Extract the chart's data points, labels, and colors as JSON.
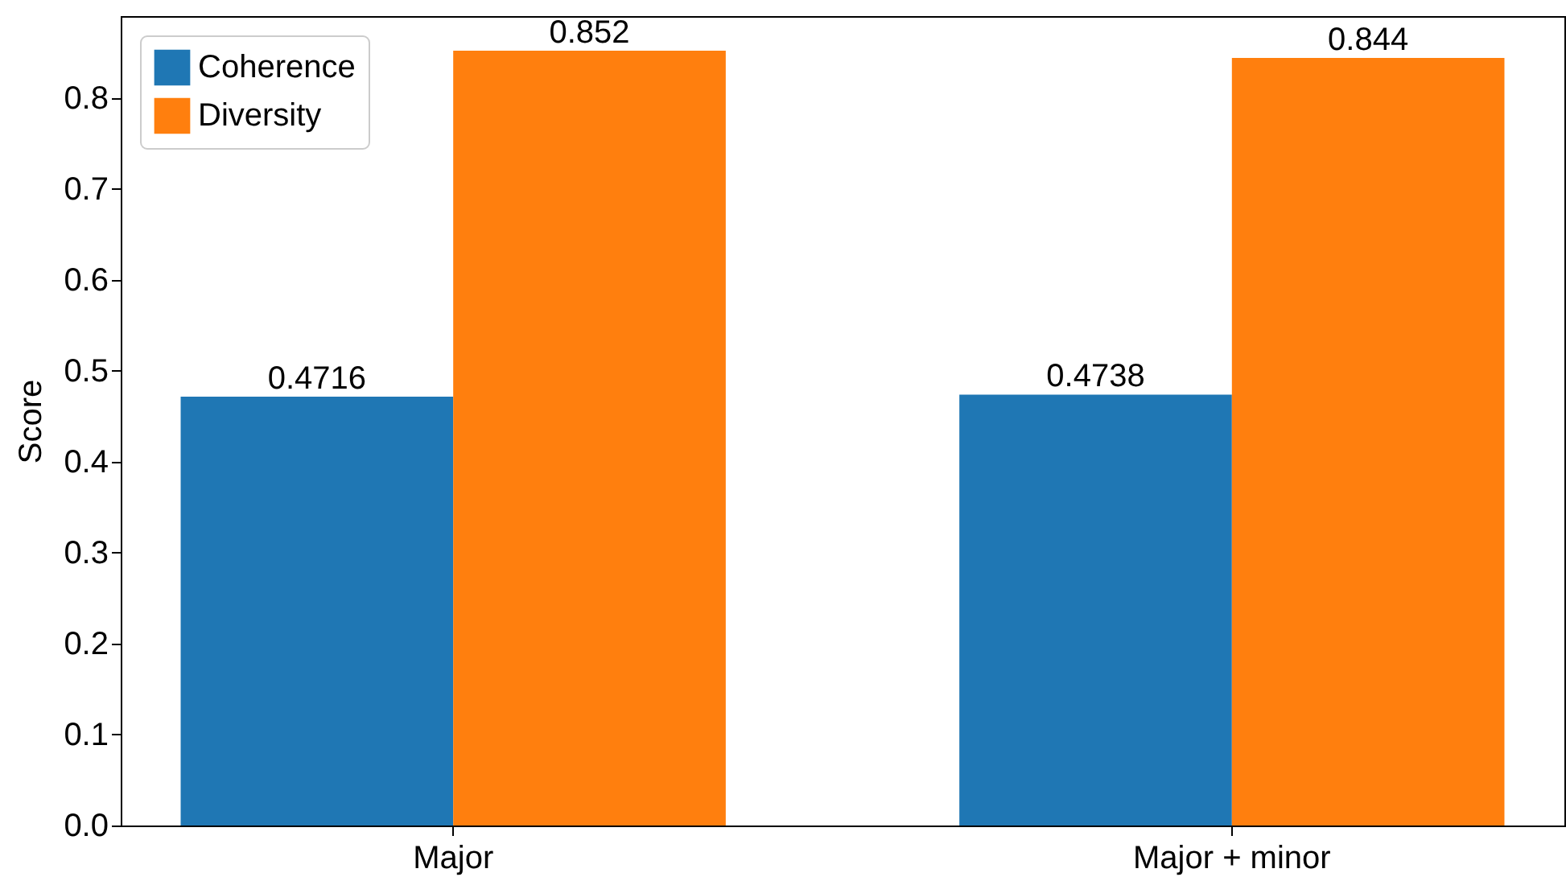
{
  "chart_data": {
    "type": "bar",
    "categories": [
      "Major",
      "Major + minor"
    ],
    "ylabel": "Score",
    "ylim": [
      0,
      0.89
    ],
    "yticks": [
      {
        "value": 0,
        "label": "0.0"
      },
      {
        "value": 0.1,
        "label": "0.1"
      },
      {
        "value": 0.2,
        "label": "0.2"
      },
      {
        "value": 0.3,
        "label": "0.3"
      },
      {
        "value": 0.4,
        "label": "0.4"
      },
      {
        "value": 0.5,
        "label": "0.5"
      },
      {
        "value": 0.6,
        "label": "0.6"
      },
      {
        "value": 0.7,
        "label": "0.7"
      },
      {
        "value": 0.8,
        "label": "0.8"
      }
    ],
    "data_labels": true,
    "legend": "top left",
    "grid": false,
    "series": [
      {
        "name": "Coherence",
        "color": "#1f77b4",
        "values": [
          0.4716,
          0.4738
        ]
      },
      {
        "name": "Diversity",
        "color": "#ff7f0e",
        "values": [
          0.852,
          0.844
        ]
      }
    ]
  }
}
